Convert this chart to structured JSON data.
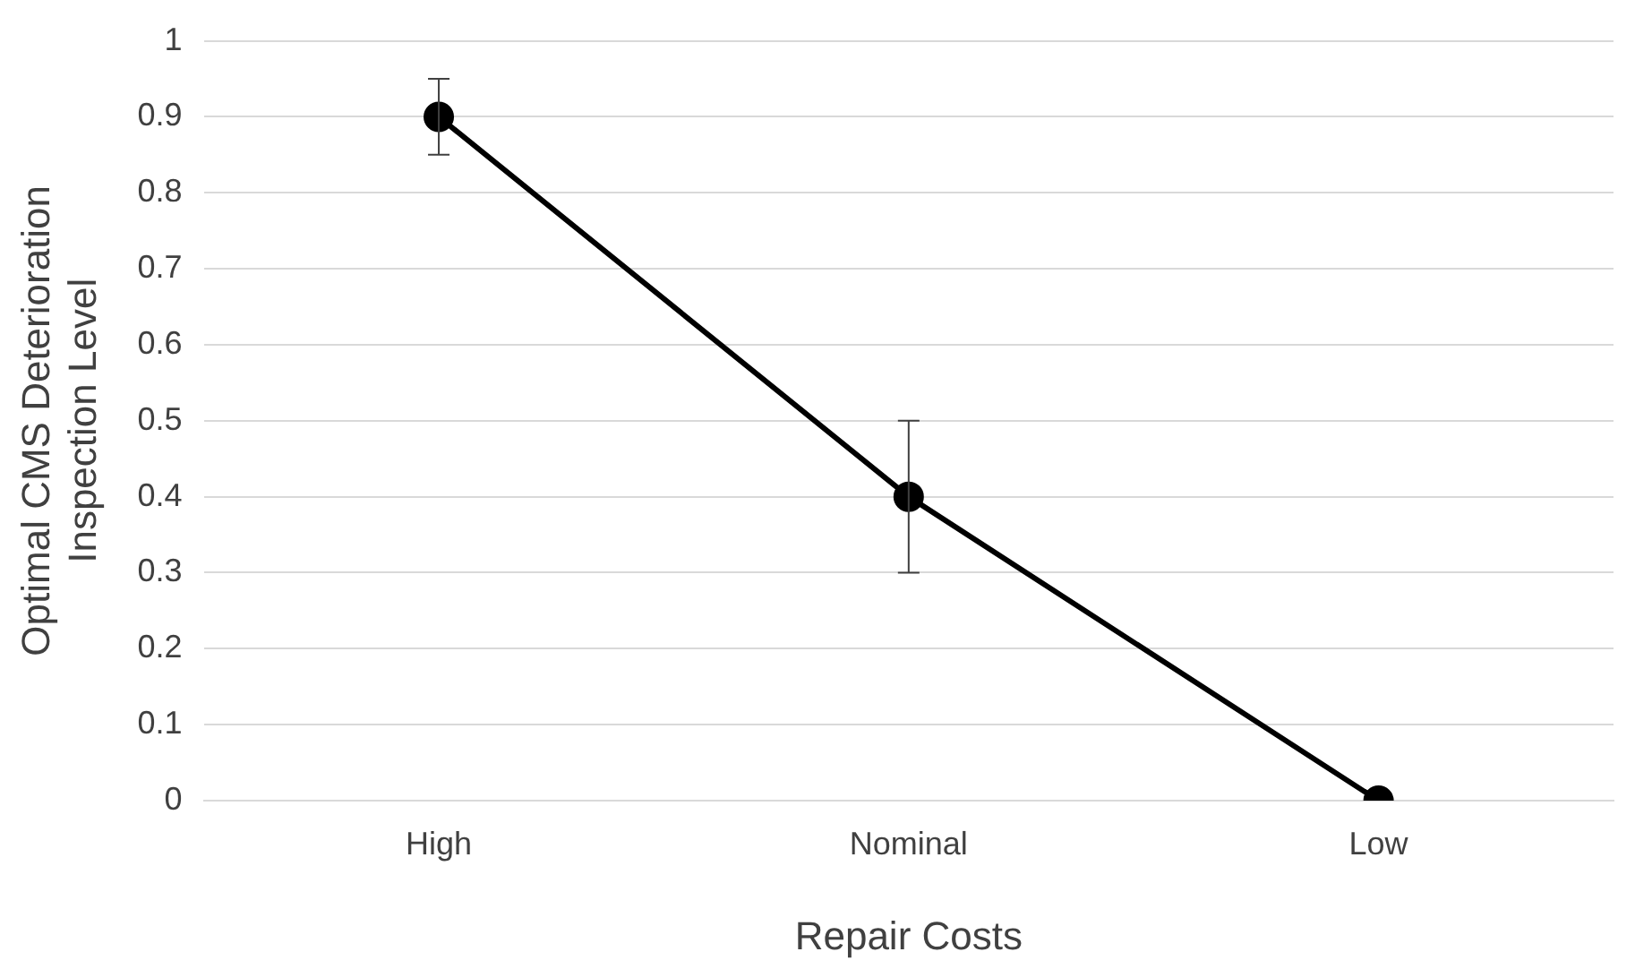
{
  "chart_data": {
    "type": "line",
    "xlabel": "Repair Costs",
    "ylabel": "Optimal CMS Deterioration\nInspection Level",
    "categories": [
      "High",
      "Nominal",
      "Low"
    ],
    "series": [
      {
        "color": "#000000",
        "values": [
          0.9,
          0.4,
          0
        ],
        "errors": [
          0.05,
          0.1,
          null
        ]
      }
    ],
    "ylim": [
      0,
      1
    ],
    "yticks": [
      0,
      0.1,
      0.2,
      0.3,
      0.4,
      0.5,
      0.6,
      0.7,
      0.8,
      0.9,
      1
    ],
    "grid": "y",
    "legend": false,
    "marker": "circle",
    "line_style": "solid"
  }
}
